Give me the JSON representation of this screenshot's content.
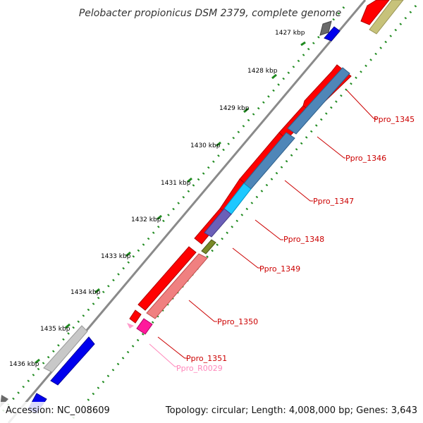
{
  "title": "Pelobacter propionicus DSM 2379, complete genome",
  "footer": {
    "accession": "Accession: NC_008609",
    "summary": "Topology: circular; Length: 4,008,000 bp; Genes: 3,643"
  },
  "kbp_labels": [
    "1427 kbp",
    "1428 kbp",
    "1429 kbp",
    "1430 kbp",
    "1431 kbp",
    "1432 kbp",
    "1433 kbp",
    "1434 kbp",
    "1435 kbp",
    "1436 kbp"
  ],
  "gene_labels": [
    {
      "name": "Ppro_1345",
      "color": "#cc0000"
    },
    {
      "name": "Ppro_1346",
      "color": "#cc0000"
    },
    {
      "name": "Ppro_1347",
      "color": "#cc0000"
    },
    {
      "name": "Ppro_1348",
      "color": "#cc0000"
    },
    {
      "name": "Ppro_1349",
      "color": "#cc0000"
    },
    {
      "name": "Ppro_1350",
      "color": "#cc0000"
    },
    {
      "name": "Ppro_1351",
      "color": "#cc0000"
    },
    {
      "name": "Ppro_R0029",
      "color": "#ff88bb"
    }
  ],
  "colors": {
    "backbone": "#8a8a8a",
    "tick_dots": "#1f8a1f",
    "red": "#ff0000",
    "steelblue": "#4f86b8",
    "cyan": "#1ec8ff",
    "purple": "#6b5fb8",
    "olive": "#7a8a28",
    "salmon": "#f08080",
    "magenta": "#ff1a9c",
    "pink": "#ff9ccc",
    "blue": "#0000ee",
    "gray": "#c8c8c8",
    "darkgray": "#6a6a6a",
    "khaki": "#c7c27a"
  }
}
